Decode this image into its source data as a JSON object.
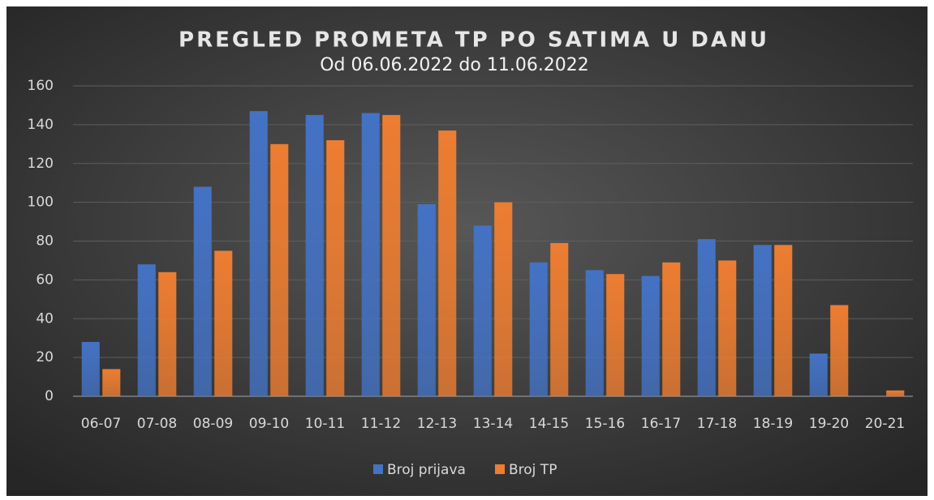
{
  "chart_data": {
    "type": "bar",
    "title": "PREGLED PROMETA TP PO SATIMA U DANU",
    "subtitle": "Od 06.06.2022 do 11.06.2022",
    "categories": [
      "06-07",
      "07-08",
      "08-09",
      "09-10",
      "10-11",
      "11-12",
      "12-13",
      "13-14",
      "14-15",
      "15-16",
      "16-17",
      "17-18",
      "18-19",
      "19-20",
      "20-21"
    ],
    "series": [
      {
        "name": "Broj prijava",
        "color": "#4472c4",
        "values": [
          28,
          68,
          108,
          147,
          145,
          146,
          99,
          88,
          69,
          65,
          62,
          81,
          78,
          22,
          0
        ]
      },
      {
        "name": "Broj TP",
        "color": "#ed7d31",
        "values": [
          14,
          64,
          75,
          130,
          132,
          145,
          137,
          100,
          79,
          63,
          69,
          70,
          78,
          47,
          3
        ]
      }
    ],
    "ylim": [
      0,
      160
    ],
    "yticks": [
      0,
      20,
      40,
      60,
      80,
      100,
      120,
      140,
      160
    ],
    "grid": true,
    "legend": "bottom"
  }
}
